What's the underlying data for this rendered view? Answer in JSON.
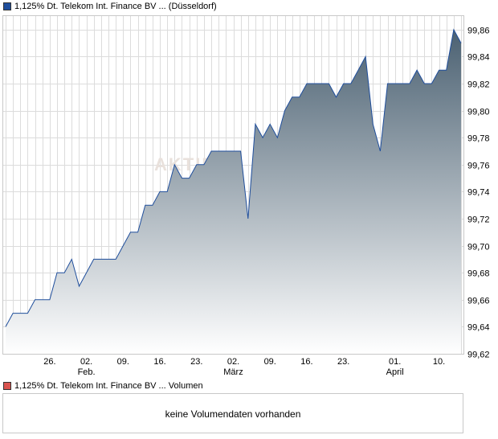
{
  "price_legend": "1,125% Dt. Telekom Int. Finance BV ... (Düsseldorf)",
  "volume_legend": "1,125% Dt. Telekom Int. Finance BV ... Volumen",
  "volume_message": "keine Volumendaten vorhanden",
  "watermark": "AKTIE",
  "colors": {
    "price_swatch": "#1f4e9c",
    "volume_swatch": "#d9534f",
    "line": "#1f4e9c",
    "area_top": "#4b6172",
    "area_bottom": "#ffffff",
    "grid": "#dcdcdc"
  },
  "chart_data": {
    "type": "area",
    "ylim": [
      99.62,
      99.87
    ],
    "yticks": [
      "99,62",
      "99,64",
      "99,66",
      "99,68",
      "99,70",
      "99,72",
      "99,74",
      "99,76",
      "99,78",
      "99,80",
      "99,82",
      "99,84",
      "99,86"
    ],
    "xticks": [
      {
        "label": "26.",
        "sub": "",
        "x": 6
      },
      {
        "label": "02.",
        "sub": "Feb.",
        "x": 11
      },
      {
        "label": "09.",
        "sub": "",
        "x": 16
      },
      {
        "label": "16.",
        "sub": "",
        "x": 21
      },
      {
        "label": "23.",
        "sub": "",
        "x": 26
      },
      {
        "label": "02.",
        "sub": "März",
        "x": 31
      },
      {
        "label": "09.",
        "sub": "",
        "x": 36
      },
      {
        "label": "16.",
        "sub": "",
        "x": 41
      },
      {
        "label": "23.",
        "sub": "",
        "x": 46
      },
      {
        "label": "01.",
        "sub": "April",
        "x": 53
      },
      {
        "label": "10.",
        "sub": "",
        "x": 59
      }
    ],
    "values": [
      99.64,
      99.65,
      99.65,
      99.65,
      99.66,
      99.66,
      99.66,
      99.68,
      99.68,
      99.69,
      99.67,
      99.68,
      99.69,
      99.69,
      99.69,
      99.69,
      99.7,
      99.71,
      99.71,
      99.73,
      99.73,
      99.74,
      99.74,
      99.76,
      99.75,
      99.75,
      99.76,
      99.76,
      99.77,
      99.77,
      99.77,
      99.77,
      99.77,
      99.72,
      99.79,
      99.78,
      99.79,
      99.78,
      99.8,
      99.81,
      99.81,
      99.82,
      99.82,
      99.82,
      99.82,
      99.81,
      99.82,
      99.82,
      99.83,
      99.84,
      99.79,
      99.77,
      99.82,
      99.82,
      99.82,
      99.82,
      99.83,
      99.82,
      99.82,
      99.83,
      99.83,
      99.86,
      99.85
    ]
  }
}
